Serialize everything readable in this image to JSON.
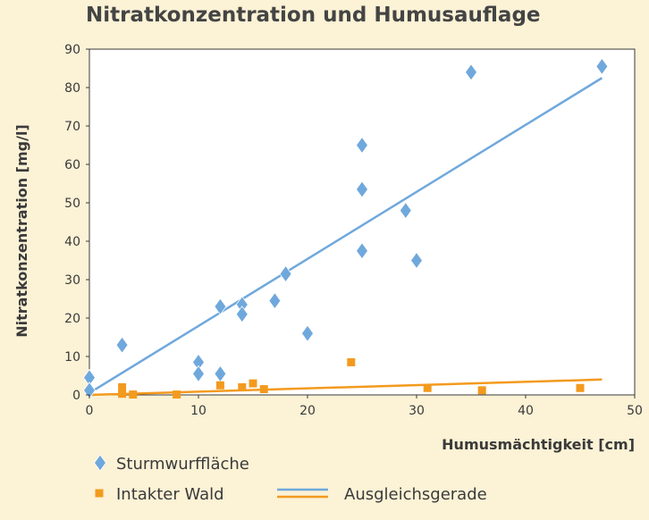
{
  "chart_data": {
    "type": "scatter",
    "title": "Nitratkonzentration und Humusauflage",
    "xlabel": "Humusmächtigkeit [cm]",
    "ylabel": "Nitratkonzentration [mg/l]",
    "xlim": [
      0,
      50
    ],
    "ylim": [
      0,
      90
    ],
    "xticks": [
      0,
      10,
      20,
      30,
      40,
      50
    ],
    "yticks": [
      0,
      10,
      20,
      30,
      40,
      50,
      60,
      70,
      80,
      90
    ],
    "grid": false,
    "series": [
      {
        "name": "Sturmwurffläche",
        "marker": "diamond",
        "color": "#6fa8dc",
        "points": [
          [
            0,
            4.5
          ],
          [
            0,
            1.2
          ],
          [
            3,
            13
          ],
          [
            10,
            8.5
          ],
          [
            10,
            5.5
          ],
          [
            12,
            23
          ],
          [
            12,
            5.5
          ],
          [
            14,
            23.5
          ],
          [
            14,
            21
          ],
          [
            17,
            24.5
          ],
          [
            18,
            31.5
          ],
          [
            20,
            16
          ],
          [
            25,
            65
          ],
          [
            25,
            53.5
          ],
          [
            25,
            37.5
          ],
          [
            29,
            48
          ],
          [
            30,
            35
          ],
          [
            35,
            84
          ],
          [
            47,
            85.5
          ]
        ]
      },
      {
        "name": "Intakter Wald",
        "marker": "square",
        "color": "#f39a1e",
        "points": [
          [
            3,
            2
          ],
          [
            3,
            0.3
          ],
          [
            4,
            0.1
          ],
          [
            8,
            0.1
          ],
          [
            12,
            2.5
          ],
          [
            14,
            2
          ],
          [
            15,
            3
          ],
          [
            16,
            1.5
          ],
          [
            24,
            8.5
          ],
          [
            31,
            1.8
          ],
          [
            36,
            1.2
          ],
          [
            45,
            1.8
          ]
        ]
      }
    ],
    "trendlines": {
      "label": "Ausgleichsgerade",
      "lines": [
        {
          "series": "Sturmwurffläche",
          "color": "#6fa8dc",
          "from": [
            0,
            0.5
          ],
          "to": [
            47,
            82.5
          ]
        },
        {
          "series": "Intakter Wald",
          "color": "#f39a1e",
          "from": [
            0,
            0
          ],
          "to": [
            47,
            4
          ]
        }
      ]
    },
    "legend": {
      "position": "bottom",
      "entries": [
        "Sturmwurffläche",
        "Intakter Wald",
        "Ausgleichsgerade"
      ]
    }
  }
}
